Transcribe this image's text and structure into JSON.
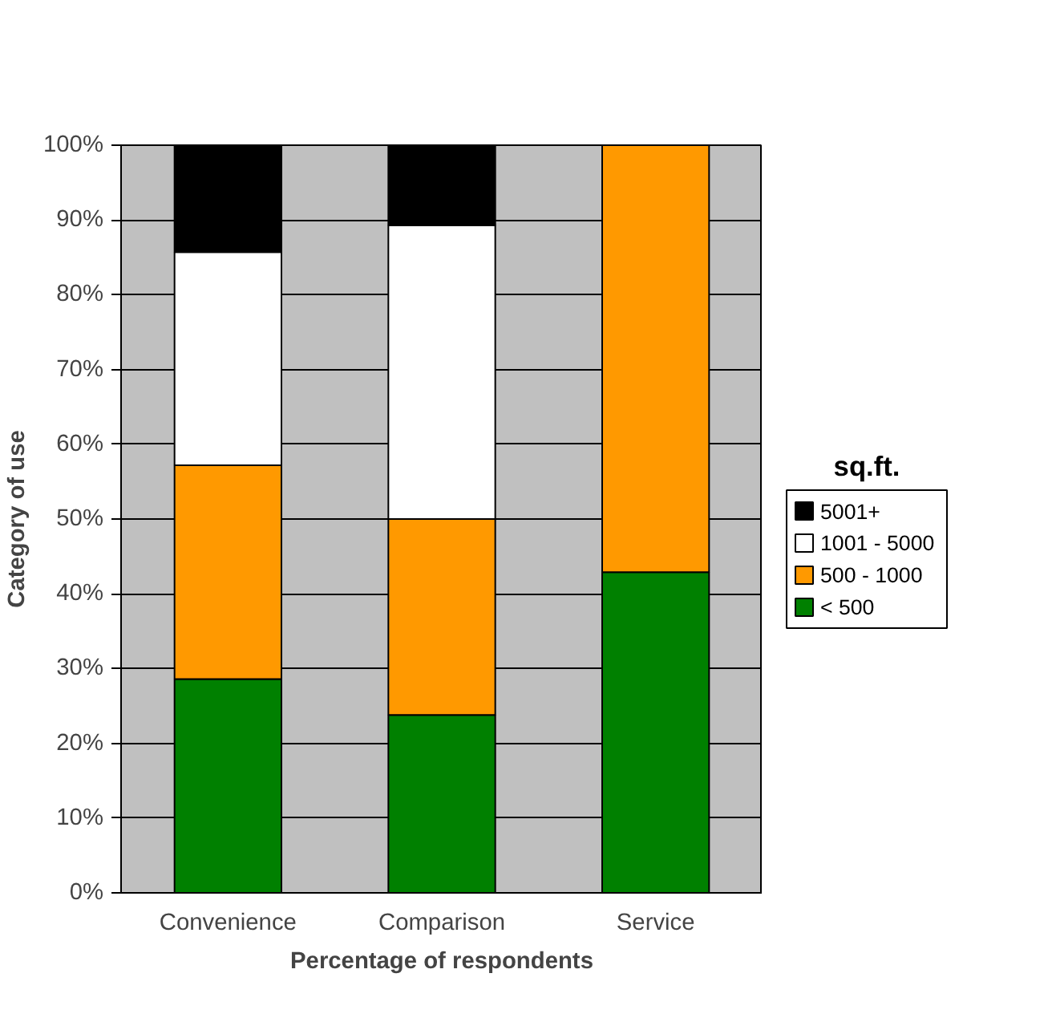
{
  "chart_data": {
    "type": "bar",
    "stacked": true,
    "xlabel": "Percentage of respondents",
    "ylabel": "Category of use",
    "legend_title": "sq.ft.",
    "legend": "right",
    "grid": "y",
    "categories": [
      "Convenience",
      "Comparison",
      "Service"
    ],
    "ylim": [
      0,
      100
    ],
    "yticks": [
      {
        "value": 0,
        "label": "0%"
      },
      {
        "value": 10,
        "label": "10%"
      },
      {
        "value": 20,
        "label": "20%"
      },
      {
        "value": 30,
        "label": "30%"
      },
      {
        "value": 40,
        "label": "40%"
      },
      {
        "value": 50,
        "label": "50%"
      },
      {
        "value": 60,
        "label": "60%"
      },
      {
        "value": 70,
        "label": "70%"
      },
      {
        "value": 80,
        "label": "80%"
      },
      {
        "value": 90,
        "label": "90%"
      },
      {
        "value": 100,
        "label": "100%"
      }
    ],
    "series": [
      {
        "name": "< 500",
        "color": "#008000",
        "values": [
          28.6,
          23.8,
          42.9
        ]
      },
      {
        "name": "500 - 1000",
        "color": "#ff9900",
        "values": [
          28.6,
          26.2,
          57.1
        ]
      },
      {
        "name": "1001 - 5000",
        "color": "#ffffff",
        "values": [
          28.5,
          39.3,
          0
        ]
      },
      {
        "name": "5001+",
        "color": "#000000",
        "values": [
          14.3,
          10.7,
          0
        ]
      }
    ]
  }
}
